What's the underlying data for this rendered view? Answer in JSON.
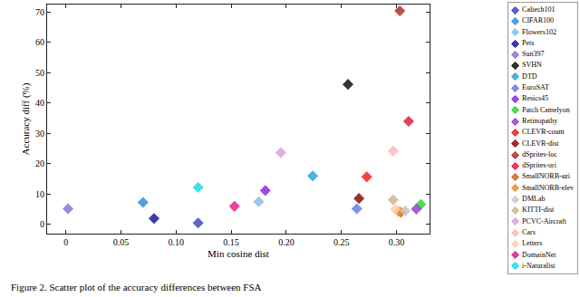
{
  "chart_data": {
    "type": "scatter",
    "caption": "Figure 2. Scatter plot of the accuracy differences between FSA",
    "xlabel": "Min cosine dist",
    "ylabel": "Accuracy diff (%)",
    "xlim": [
      -0.017,
      0.33
    ],
    "ylim": [
      -3,
      72.5
    ],
    "xticks": [
      0,
      0.05,
      {
        "value": 0.1,
        "label": "0.10"
      },
      0.15,
      {
        "value": 0.2,
        "label": "0.20"
      },
      0.25,
      {
        "value": 0.3,
        "label": "0.30"
      }
    ],
    "yticks": [
      0,
      10,
      20,
      30,
      40,
      50,
      60,
      70
    ],
    "grid": false,
    "legend": "right",
    "marker": "diamond",
    "series": [
      {
        "name": "Caltech101",
        "color": "#3b4cc0",
        "x": [
          0.12
        ],
        "values": [
          0.5
        ]
      },
      {
        "name": "CIFAR100",
        "color": "#3a8fd9",
        "x": [
          0.07
        ],
        "values": [
          7.3
        ]
      },
      {
        "name": "Flowers102",
        "color": "#87bfe8",
        "x": [
          0.175
        ],
        "values": [
          7.5
        ]
      },
      {
        "name": "Pets",
        "color": "#1a1aa6",
        "x": [
          0.08
        ],
        "values": [
          2.0
        ]
      },
      {
        "name": "Sun397",
        "color": "#8878d8",
        "x": [
          0.002
        ],
        "values": [
          5.2
        ]
      },
      {
        "name": "SVHN",
        "color": "#111111",
        "x": [
          0.256
        ],
        "values": [
          46.2
        ]
      },
      {
        "name": "DTD",
        "color": "#2aa6e0",
        "x": [
          0.224
        ],
        "values": [
          16.0
        ]
      },
      {
        "name": "EuroSAT",
        "color": "#6a7fe0",
        "x": [
          0.264
        ],
        "values": [
          5.2
        ]
      },
      {
        "name": "Resics45",
        "color": "#8a2be2",
        "x": [
          0.181
        ],
        "values": [
          11.2
        ]
      },
      {
        "name": "Patch Camelyon",
        "color": "#33d633",
        "x": [
          0.322
        ],
        "values": [
          6.6
        ]
      },
      {
        "name": "Retinopathy",
        "color": "#9a40d0",
        "x": [
          0.318
        ],
        "values": [
          5.1
        ]
      },
      {
        "name": "CLEVR-count",
        "color": "#ee2222",
        "x": [
          0.273
        ],
        "values": [
          15.7
        ]
      },
      {
        "name": "CLEVR-dist",
        "color": "#8b1010",
        "x": [
          0.266
        ],
        "values": [
          8.6
        ]
      },
      {
        "name": "dSprites-loc",
        "color": "#b03030",
        "x": [
          0.303
        ],
        "values": [
          70.4
        ]
      },
      {
        "name": "dSprites-ori",
        "color": "#e0203c",
        "x": [
          0.311
        ],
        "values": [
          34.0
        ]
      },
      {
        "name": "SmallNORB-azi",
        "color": "#d2691e",
        "x": [
          0.304
        ],
        "values": [
          4.0
        ]
      },
      {
        "name": "SmallNORB-elev",
        "color": "#f08c30",
        "x": [
          0.302
        ],
        "values": [
          4.3
        ]
      },
      {
        "name": "DMLab",
        "color": "#c8c8c8",
        "x": [
          0.308
        ],
        "values": [
          4.5
        ]
      },
      {
        "name": "KITTI-dist",
        "color": "#d2b48c",
        "x": [
          0.297
        ],
        "values": [
          8.1
        ]
      },
      {
        "name": "PCVC-Aircraft",
        "color": "#dda0dd",
        "x": [
          0.195
        ],
        "values": [
          23.7
        ]
      },
      {
        "name": "Cars",
        "color": "#ffb6c1",
        "x": [
          0.297
        ],
        "values": [
          24.2
        ]
      },
      {
        "name": "Letters",
        "color": "#ffd0b0",
        "x": [
          0.299
        ],
        "values": [
          5.0
        ]
      },
      {
        "name": "DomainNet",
        "color": "#e8208c",
        "x": [
          0.153
        ],
        "values": [
          6.0
        ]
      },
      {
        "name": "i-Naturalist",
        "color": "#20d8e8",
        "x": [
          0.12
        ],
        "values": [
          12.2
        ]
      }
    ]
  }
}
